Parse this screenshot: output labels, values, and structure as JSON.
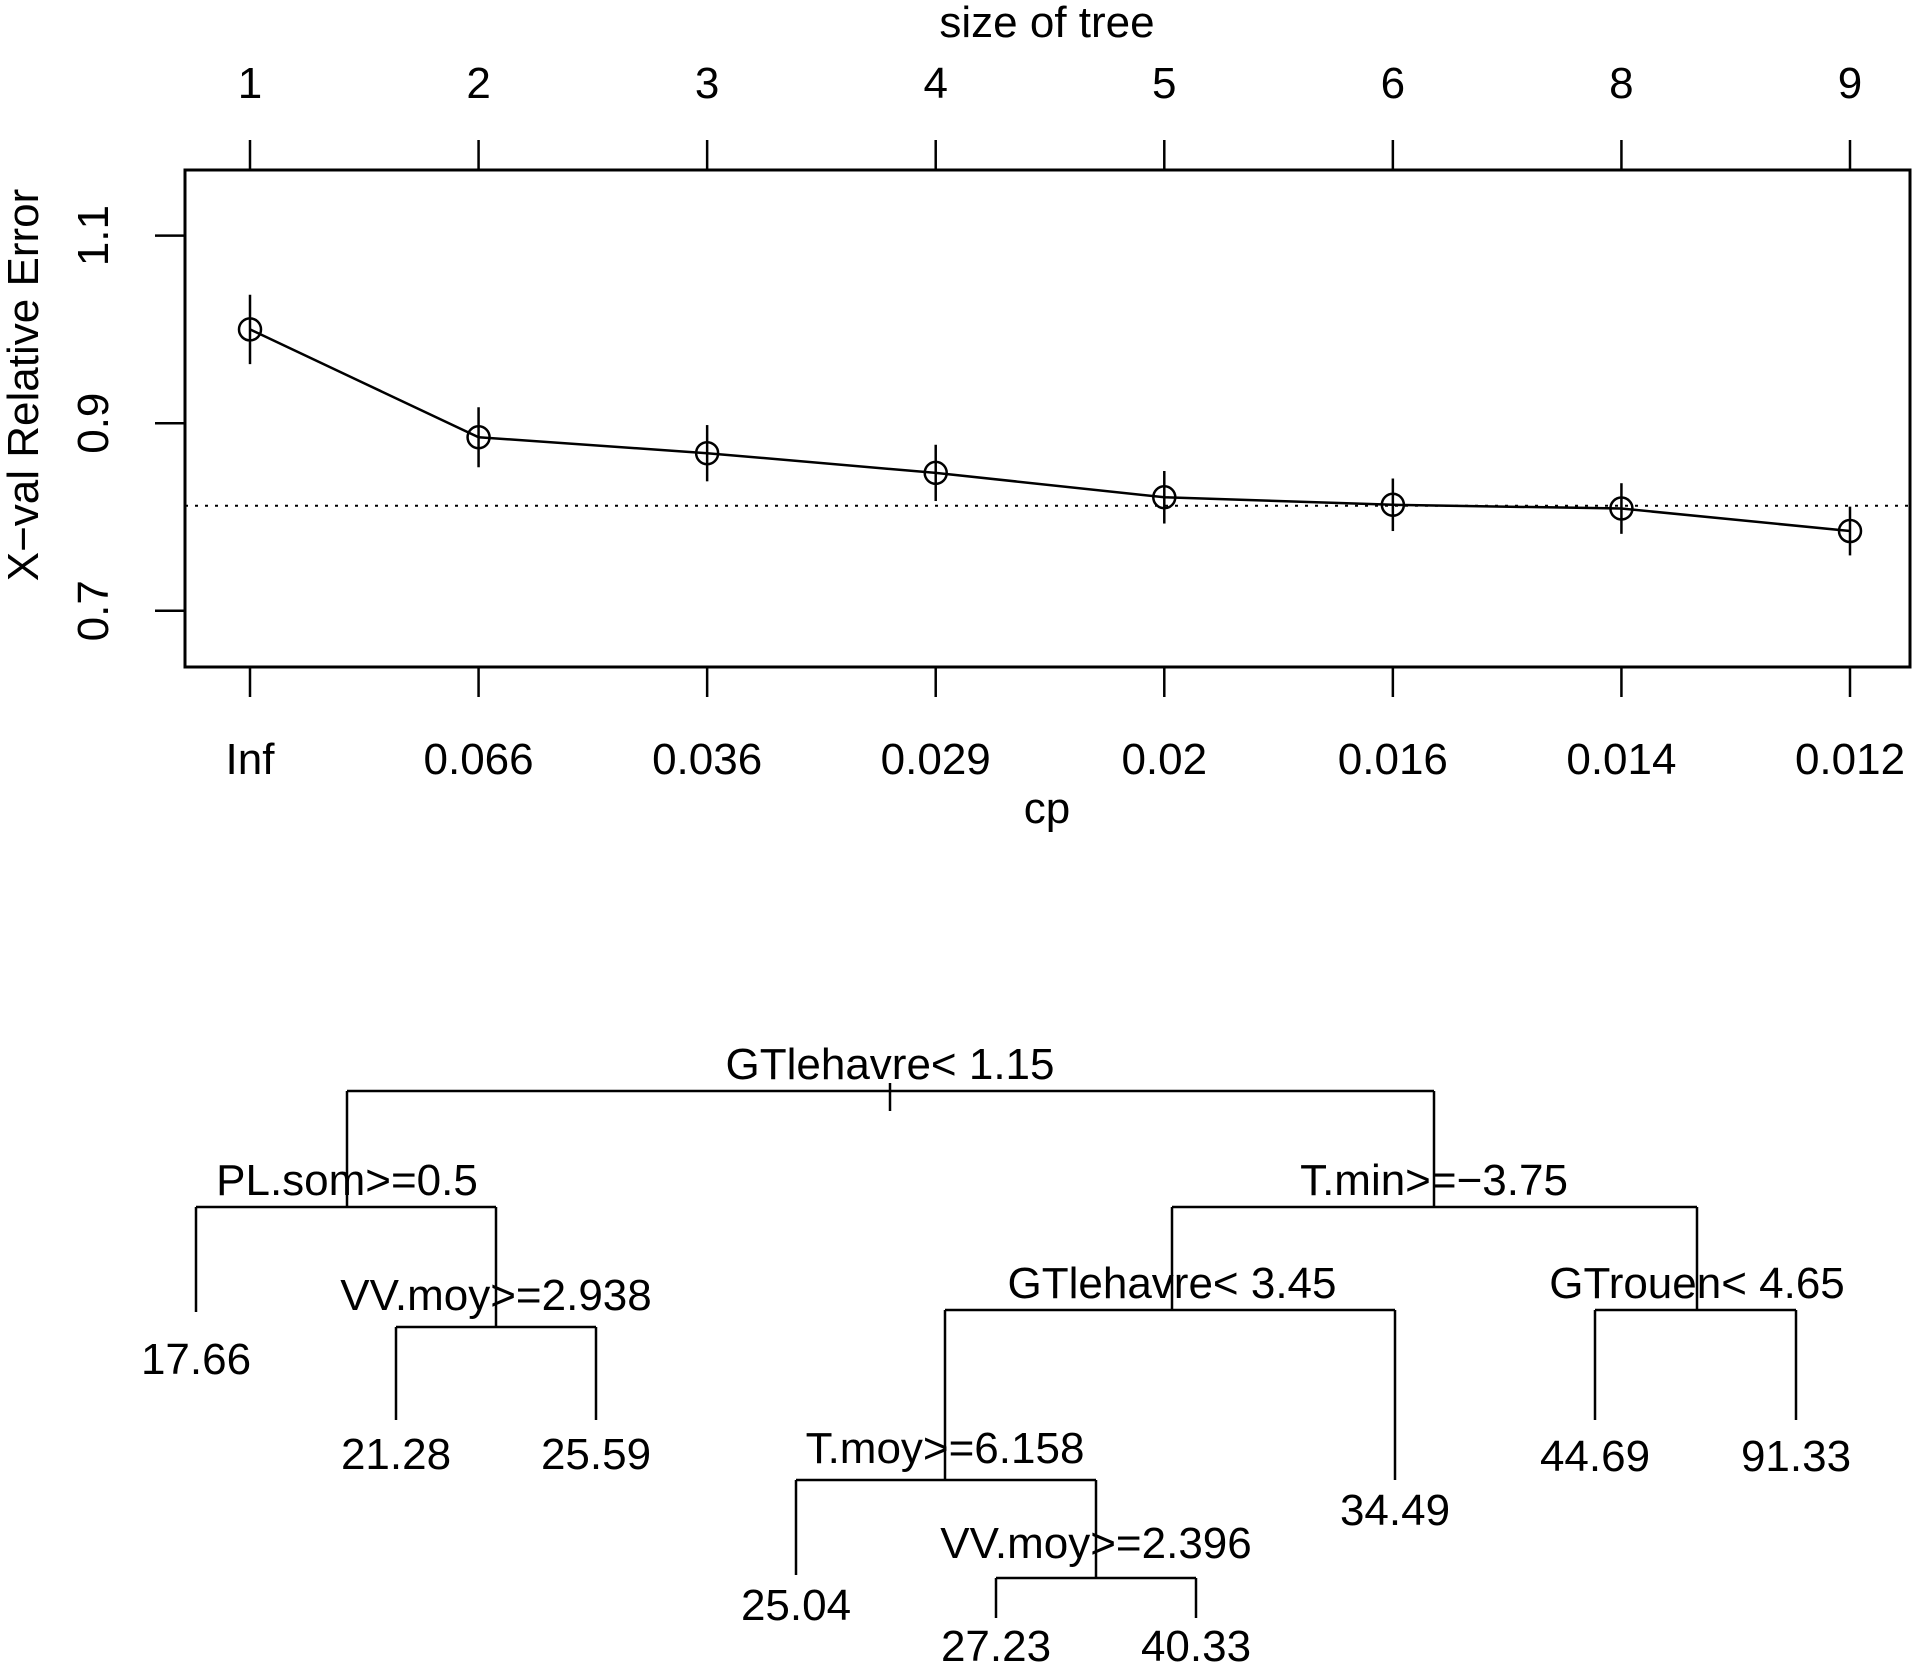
{
  "chart_data": [
    {
      "type": "line",
      "top_axis_label": "size of tree",
      "size_ticks": [
        "1",
        "2",
        "3",
        "4",
        "5",
        "6",
        "8",
        "9"
      ],
      "xlabel": "cp",
      "cp_ticks": [
        "Inf",
        "0.066",
        "0.036",
        "0.029",
        "0.02",
        "0.016",
        "0.014",
        "0.012"
      ],
      "ylabel": "X−val Relative Error",
      "y_ticks": [
        "0.7",
        "0.9",
        "1.1"
      ],
      "y_tick_values": [
        0.7,
        0.9,
        1.1
      ],
      "ylim": [
        0.64,
        1.17
      ],
      "values": [
        1.0,
        0.885,
        0.868,
        0.847,
        0.821,
        0.813,
        0.809,
        0.785
      ],
      "errors": [
        0.037,
        0.032,
        0.03,
        0.03,
        0.028,
        0.028,
        0.027,
        0.026
      ],
      "reference_line": 0.812,
      "reference_style": "dotted"
    },
    {
      "type": "tree",
      "nodes": {
        "root": {
          "label": "GTlehavre< 1.15"
        },
        "left": {
          "label": "PL.som>=0.5"
        },
        "left_right": {
          "label": "VV.moy>=2.938"
        },
        "right": {
          "label": "T.min>=−3.75"
        },
        "right_left": {
          "label": "GTlehavre< 3.45"
        },
        "right_left_left": {
          "label": "T.moy>=6.158"
        },
        "right_left_left_right": {
          "label": "VV.moy>=2.396"
        },
        "right_right": {
          "label": "GTrouen< 4.65"
        }
      },
      "leaves": {
        "l1": "17.66",
        "l2": "21.28",
        "l3": "25.59",
        "l4": "25.04",
        "l5": "27.23",
        "l6": "40.33",
        "l7": "34.49",
        "l8": "44.69",
        "l9": "91.33"
      }
    }
  ]
}
